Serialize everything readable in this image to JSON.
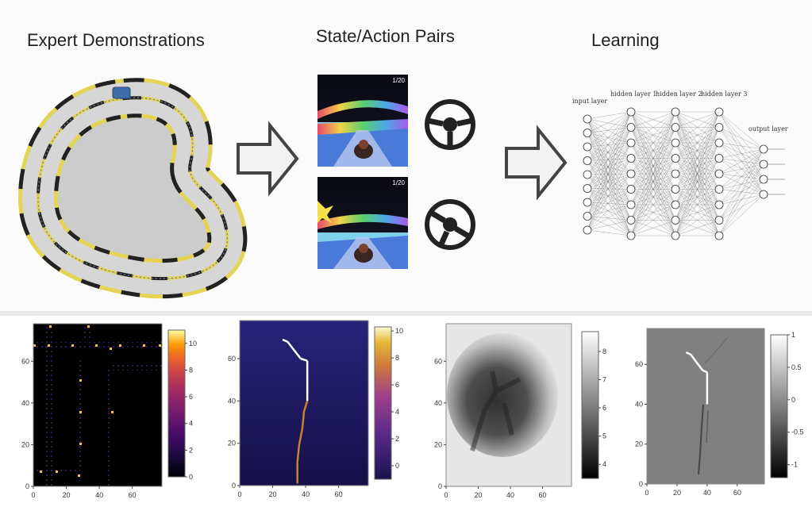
{
  "top": {
    "titles": {
      "expert": "Expert Demonstrations",
      "pairs": "State/Action Pairs",
      "learning": "Learning"
    },
    "game_hud": "1/20",
    "network": {
      "input_layer": "input layer",
      "hidden_1": "hidden layer 1",
      "hidden_2": "hidden layer 2",
      "hidden_3": "hidden layer 3",
      "output_layer": "output layer"
    }
  },
  "chart_data": [
    {
      "type": "heatmap",
      "xticks": [
        "0",
        "20",
        "40",
        "60"
      ],
      "yticks": [
        "0",
        "20",
        "40",
        "60"
      ],
      "xlim": [
        0,
        78
      ],
      "ylim": [
        0,
        78
      ],
      "colorbar_ticks": [
        "0",
        "2",
        "4",
        "6",
        "8",
        "10"
      ],
      "colorbar_range": [
        0,
        11
      ]
    },
    {
      "type": "heatmap",
      "xticks": [
        "0",
        "20",
        "40",
        "60"
      ],
      "yticks": [
        "0",
        "20",
        "40",
        "60"
      ],
      "xlim": [
        0,
        78
      ],
      "ylim": [
        0,
        78
      ],
      "colorbar_ticks": [
        "0",
        "2",
        "4",
        "6",
        "8",
        "10"
      ],
      "colorbar_range": [
        -1,
        10.3
      ],
      "path": [
        [
          26,
          69
        ],
        [
          29,
          68
        ],
        [
          33,
          64
        ],
        [
          37,
          60
        ],
        [
          41,
          59
        ],
        [
          41,
          40
        ],
        [
          39,
          35
        ],
        [
          38,
          27
        ],
        [
          36,
          19
        ],
        [
          35,
          11
        ],
        [
          35,
          1
        ]
      ]
    },
    {
      "type": "heatmap",
      "xticks": [
        "0",
        "20",
        "40",
        "60"
      ],
      "yticks": [
        "0",
        "20",
        "40",
        "60"
      ],
      "xlim": [
        0,
        78
      ],
      "ylim": [
        0,
        78
      ],
      "colorbar_ticks": [
        "4",
        "5",
        "6",
        "7",
        "8"
      ],
      "colorbar_range": [
        3.5,
        8.7
      ]
    },
    {
      "type": "heatmap",
      "xticks": [
        "0",
        "20",
        "40",
        "60"
      ],
      "yticks": [
        "0",
        "20",
        "40",
        "60"
      ],
      "xlim": [
        0,
        78
      ],
      "ylim": [
        0,
        78
      ],
      "colorbar_ticks": [
        "-1",
        "-0.5",
        "0",
        "0.5",
        "1"
      ],
      "colorbar_range": [
        -1.2,
        1
      ],
      "path": [
        [
          26,
          66
        ],
        [
          29,
          65
        ],
        [
          33,
          61
        ],
        [
          37,
          57
        ],
        [
          40,
          56
        ],
        [
          40,
          40
        ]
      ]
    }
  ]
}
